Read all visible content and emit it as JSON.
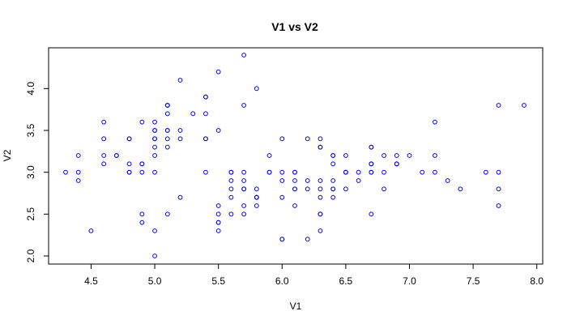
{
  "chart_data": {
    "type": "scatter",
    "title": "V1 vs V2",
    "xlabel": "V1",
    "ylabel": "V2",
    "xlim": [
      4.3,
      7.9
    ],
    "ylim": [
      2.0,
      4.4
    ],
    "x_ticks": [
      "4.5",
      "5.0",
      "5.5",
      "6.0",
      "6.5",
      "7.0",
      "7.5",
      "8.0"
    ],
    "y_ticks": [
      "2.0",
      "2.5",
      "3.0",
      "3.5",
      "4.0"
    ],
    "grid": false,
    "legend": "none",
    "marker": "open-circle",
    "point_color": "#0000ff",
    "x": [
      5.1,
      4.9,
      4.7,
      4.6,
      5.0,
      5.4,
      4.6,
      5.0,
      4.4,
      4.9,
      5.4,
      4.8,
      4.8,
      4.3,
      5.8,
      5.7,
      5.4,
      5.1,
      5.7,
      5.1,
      5.4,
      5.1,
      4.6,
      5.1,
      4.8,
      5.0,
      5.0,
      5.2,
      5.2,
      4.7,
      4.8,
      5.4,
      5.2,
      5.5,
      4.9,
      5.0,
      5.5,
      4.9,
      4.4,
      5.1,
      5.0,
      4.5,
      4.4,
      5.0,
      5.1,
      4.8,
      5.1,
      4.6,
      5.3,
      5.0,
      7.0,
      6.4,
      6.9,
      5.5,
      6.5,
      5.7,
      6.3,
      4.9,
      6.6,
      5.2,
      5.0,
      5.9,
      6.0,
      6.1,
      5.6,
      6.7,
      5.6,
      5.8,
      6.2,
      5.6,
      5.9,
      6.1,
      6.3,
      6.1,
      6.4,
      6.6,
      6.8,
      6.7,
      6.0,
      5.7,
      5.5,
      5.5,
      5.8,
      6.0,
      5.4,
      6.0,
      6.7,
      6.3,
      5.6,
      5.5,
      5.5,
      6.1,
      5.8,
      5.0,
      5.6,
      5.7,
      5.7,
      6.2,
      5.1,
      5.7,
      6.3,
      5.8,
      7.1,
      6.3,
      6.5,
      7.6,
      4.9,
      7.3,
      6.7,
      7.2,
      6.5,
      6.4,
      6.8,
      5.7,
      5.8,
      6.4,
      6.5,
      7.7,
      7.7,
      6.0,
      6.9,
      5.6,
      7.7,
      6.3,
      6.7,
      7.2,
      6.2,
      6.1,
      6.4,
      7.2,
      7.4,
      7.9,
      6.4,
      6.3,
      6.1,
      7.7,
      6.3,
      6.4,
      6.0,
      6.9,
      6.7,
      6.9,
      5.8,
      6.8,
      6.7,
      6.7,
      6.3,
      6.5,
      6.2,
      5.9
    ],
    "y": [
      3.5,
      3.0,
      3.2,
      3.1,
      3.6,
      3.9,
      3.4,
      3.4,
      2.9,
      3.1,
      3.7,
      3.4,
      3.0,
      3.0,
      4.0,
      4.4,
      3.9,
      3.5,
      3.8,
      3.8,
      3.4,
      3.7,
      3.6,
      3.3,
      3.4,
      3.0,
      3.4,
      3.5,
      3.4,
      3.2,
      3.1,
      3.4,
      4.1,
      4.2,
      3.1,
      3.2,
      3.5,
      3.6,
      3.0,
      3.4,
      3.5,
      2.3,
      3.2,
      3.5,
      3.8,
      3.0,
      3.8,
      3.2,
      3.7,
      3.3,
      3.2,
      3.2,
      3.1,
      2.3,
      2.8,
      2.8,
      3.3,
      2.4,
      2.9,
      2.7,
      2.0,
      3.0,
      2.2,
      2.9,
      2.9,
      3.1,
      3.0,
      2.7,
      2.2,
      2.5,
      3.2,
      2.8,
      2.5,
      2.8,
      2.9,
      3.0,
      2.8,
      3.0,
      2.9,
      2.6,
      2.4,
      2.4,
      2.7,
      2.7,
      3.0,
      3.4,
      3.1,
      2.3,
      3.0,
      2.5,
      2.6,
      3.0,
      2.6,
      2.3,
      2.7,
      3.0,
      2.9,
      2.9,
      2.5,
      2.8,
      3.3,
      2.7,
      3.0,
      2.9,
      3.0,
      3.0,
      2.5,
      2.9,
      2.5,
      3.6,
      3.2,
      2.7,
      3.0,
      2.5,
      2.8,
      3.2,
      3.0,
      3.8,
      2.6,
      2.2,
      3.2,
      2.8,
      2.8,
      2.7,
      3.3,
      3.2,
      2.8,
      3.0,
      2.8,
      3.0,
      2.8,
      3.8,
      2.8,
      2.8,
      2.6,
      3.0,
      3.4,
      3.1,
      3.0,
      3.1,
      3.1,
      3.1,
      2.7,
      3.2,
      3.3,
      3.0,
      2.5,
      3.0,
      3.4,
      3.0
    ]
  }
}
